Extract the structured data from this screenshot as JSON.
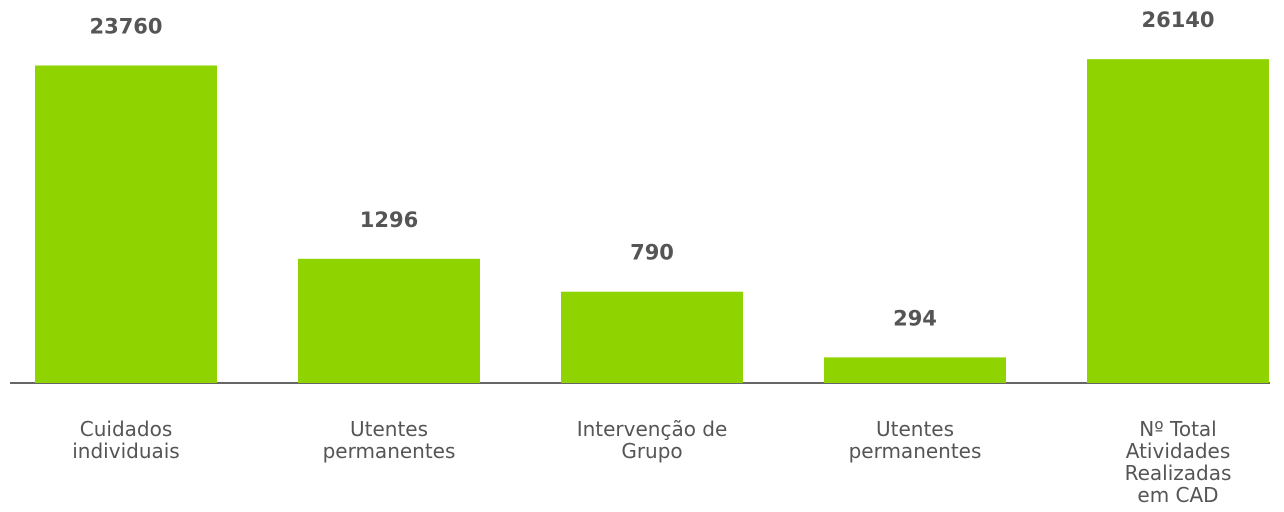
{
  "chart_data": {
    "type": "bar",
    "categories": [
      "Cuidados\nindividuais",
      "Utentes\npermanentes",
      "Intervenção de\nGrupo",
      "Utentes\npermanentes",
      "Nº Total\nAtividades\nRealizadas\nem CAD"
    ],
    "values": [
      23760,
      1296,
      790,
      294,
      26140
    ],
    "color": "#8fd400",
    "log_scale": true,
    "ylim": [
      200,
      30000
    ]
  }
}
